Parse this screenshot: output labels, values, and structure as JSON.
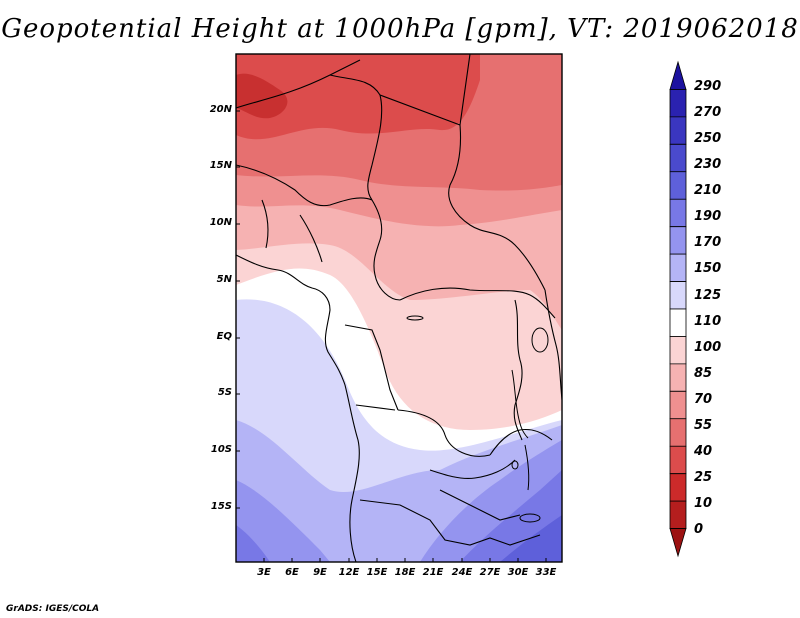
{
  "title": "Geopotential Height at 1000hPa [gpm], VT: 2019062018",
  "credit": "GrADS: IGES/COLA",
  "lat_labels": [
    "20N",
    "15N",
    "10N",
    "5N",
    "EQ",
    "5S",
    "10S",
    "15S"
  ],
  "lon_labels": [
    "3E",
    "6E",
    "9E",
    "12E",
    "15E",
    "18E",
    "21E",
    "24E",
    "27E",
    "30E",
    "33E"
  ],
  "colorbar": {
    "labels": [
      "290",
      "270",
      "250",
      "230",
      "210",
      "190",
      "170",
      "150",
      "125",
      "110",
      "100",
      "85",
      "70",
      "55",
      "40",
      "25",
      "10",
      "0"
    ],
    "colors": [
      "#1c129f",
      "#2a22b0",
      "#3a36c0",
      "#4a4acd",
      "#5e60da",
      "#7878e6",
      "#9494ef",
      "#b4b4f6",
      "#d8d8fb",
      "#ffffff",
      "#fbd4d4",
      "#f6b2b2",
      "#ef9090",
      "#e67070",
      "#dc4c4c",
      "#cc2a2a",
      "#b41e1e",
      "#9c1212"
    ]
  }
}
